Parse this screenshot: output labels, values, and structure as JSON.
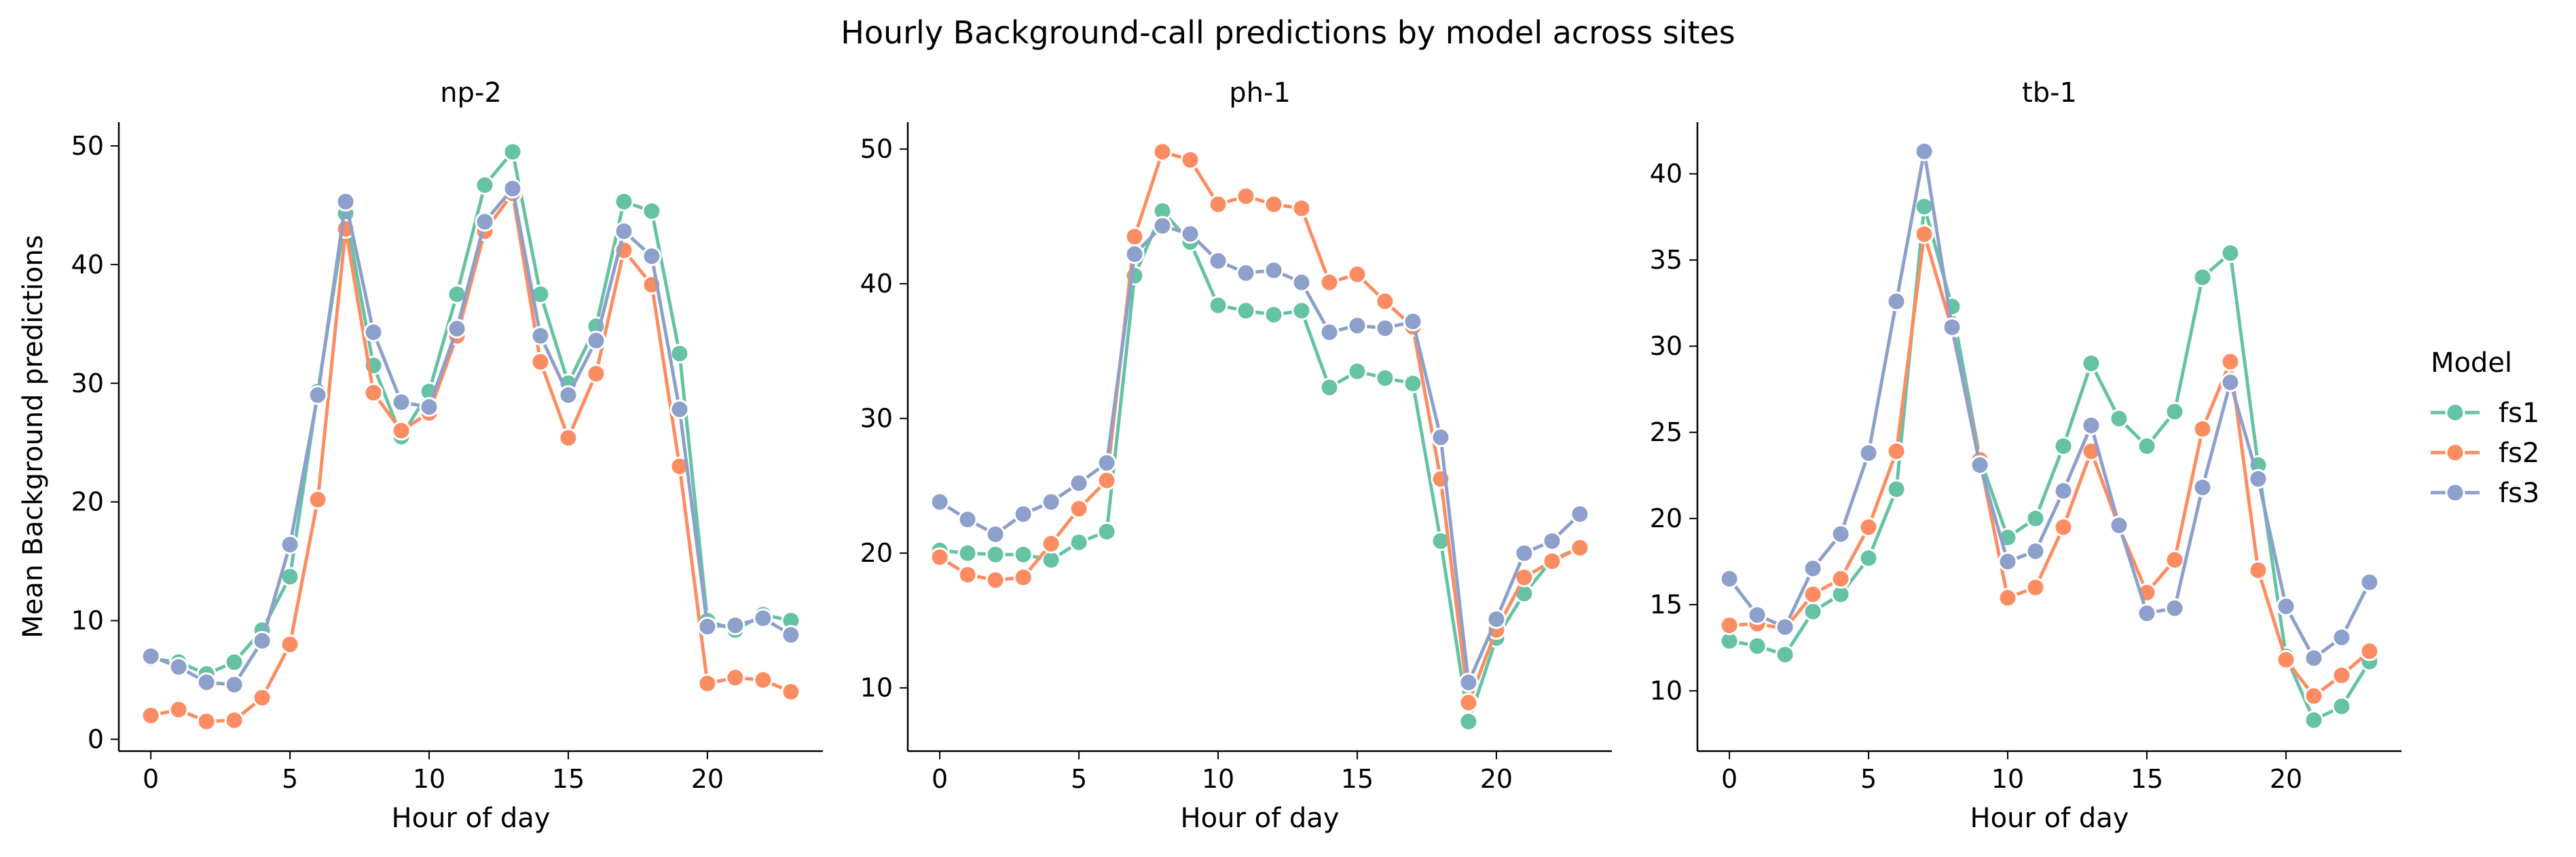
{
  "figure": {
    "title": "Hourly Background-call predictions by model across sites"
  },
  "legend": {
    "title": "Model",
    "placement": "center-right"
  },
  "chart_data": [
    {
      "type": "line",
      "title": "np-2",
      "xlabel": "Hour of day",
      "ylabel": "Mean Background predictions",
      "xlim": [
        -1.15,
        24.15
      ],
      "ylim": [
        -1,
        52
      ],
      "xticks": [
        0,
        5,
        10,
        15,
        20
      ],
      "yticks": [
        0,
        10,
        20,
        30,
        40,
        50
      ],
      "x": [
        0,
        1,
        2,
        3,
        4,
        5,
        6,
        7,
        8,
        9,
        10,
        11,
        12,
        13,
        14,
        15,
        16,
        17,
        18,
        19,
        20,
        21,
        22,
        23
      ],
      "series": [
        {
          "name": "fs1",
          "color": "#66c2a5",
          "values": [
            6.8,
            6.5,
            5.5,
            6.5,
            9.2,
            13.7,
            29.3,
            44.3,
            31.5,
            25.5,
            29.3,
            37.5,
            46.7,
            49.5,
            37.5,
            30.0,
            34.8,
            45.3,
            44.5,
            32.5,
            10.0,
            9.2,
            10.5,
            10.0
          ]
        },
        {
          "name": "fs2",
          "color": "#fc8d62",
          "values": [
            2.0,
            2.5,
            1.5,
            1.6,
            3.5,
            8.0,
            20.2,
            43.0,
            29.2,
            26.0,
            27.5,
            34.0,
            42.8,
            46.0,
            31.8,
            25.4,
            30.8,
            41.2,
            38.3,
            23.0,
            4.7,
            5.2,
            5.0,
            4.0
          ]
        },
        {
          "name": "fs3",
          "color": "#8da0cb",
          "values": [
            7.0,
            6.1,
            4.8,
            4.6,
            8.3,
            16.4,
            29.0,
            45.3,
            34.3,
            28.4,
            28.0,
            34.6,
            43.6,
            46.4,
            34.0,
            29.0,
            33.6,
            42.8,
            40.7,
            27.8,
            9.5,
            9.6,
            10.2,
            8.8
          ]
        }
      ]
    },
    {
      "type": "line",
      "title": "ph-1",
      "xlabel": "Hour of day",
      "ylabel": "",
      "xlim": [
        -1.15,
        24.15
      ],
      "ylim": [
        5.3,
        52
      ],
      "xticks": [
        0,
        5,
        10,
        15,
        20
      ],
      "yticks": [
        10,
        20,
        30,
        40,
        50
      ],
      "x": [
        0,
        1,
        2,
        3,
        4,
        5,
        6,
        7,
        8,
        9,
        10,
        11,
        12,
        13,
        14,
        15,
        16,
        17,
        18,
        19,
        20,
        21,
        22,
        23
      ],
      "series": [
        {
          "name": "fs1",
          "color": "#66c2a5",
          "values": [
            20.2,
            20.0,
            19.9,
            19.9,
            19.5,
            20.8,
            21.6,
            40.6,
            45.4,
            43.1,
            38.4,
            38.0,
            37.7,
            38.0,
            32.3,
            33.5,
            33.0,
            32.6,
            20.9,
            7.5,
            13.7,
            17.0,
            19.5,
            20.4
          ]
        },
        {
          "name": "fs2",
          "color": "#fc8d62",
          "values": [
            19.7,
            18.4,
            18.0,
            18.2,
            20.7,
            23.3,
            25.4,
            43.5,
            49.8,
            49.2,
            45.9,
            46.5,
            45.9,
            45.6,
            40.1,
            40.7,
            38.7,
            36.8,
            25.5,
            8.9,
            14.3,
            18.2,
            19.4,
            20.4
          ]
        },
        {
          "name": "fs3",
          "color": "#8da0cb",
          "values": [
            23.8,
            22.5,
            21.4,
            22.9,
            23.8,
            25.2,
            26.7,
            42.2,
            44.3,
            43.7,
            41.7,
            40.8,
            41.0,
            40.1,
            36.4,
            36.9,
            36.7,
            37.2,
            28.6,
            10.4,
            15.1,
            20.0,
            20.9,
            22.9
          ]
        }
      ]
    },
    {
      "type": "line",
      "title": "tb-1",
      "xlabel": "Hour of day",
      "ylabel": "",
      "xlim": [
        -1.15,
        24.15
      ],
      "ylim": [
        6.5,
        43.0
      ],
      "xticks": [
        0,
        5,
        10,
        15,
        20
      ],
      "yticks": [
        10,
        15,
        20,
        25,
        30,
        35,
        40
      ],
      "x": [
        0,
        1,
        2,
        3,
        4,
        5,
        6,
        7,
        8,
        9,
        10,
        11,
        12,
        13,
        14,
        15,
        16,
        17,
        18,
        19,
        20,
        21,
        22,
        23
      ],
      "series": [
        {
          "name": "fs1",
          "color": "#66c2a5",
          "values": [
            12.9,
            12.6,
            12.1,
            14.6,
            15.6,
            17.7,
            21.7,
            38.1,
            32.3,
            23.5,
            18.9,
            20.0,
            24.2,
            29.0,
            25.8,
            24.2,
            26.2,
            34.0,
            35.4,
            23.1,
            12.0,
            8.3,
            9.1,
            11.7
          ]
        },
        {
          "name": "fs2",
          "color": "#fc8d62",
          "values": [
            13.8,
            13.9,
            13.6,
            15.6,
            16.5,
            19.5,
            23.9,
            36.5,
            31.0,
            23.4,
            15.4,
            16.0,
            19.5,
            23.9,
            19.5,
            15.7,
            17.6,
            25.2,
            29.1,
            17.0,
            11.8,
            9.7,
            10.9,
            12.3
          ]
        },
        {
          "name": "fs3",
          "color": "#8da0cb",
          "values": [
            16.5,
            14.4,
            13.7,
            17.1,
            19.1,
            23.8,
            32.6,
            41.3,
            31.1,
            23.1,
            17.5,
            18.1,
            21.6,
            25.4,
            19.6,
            14.5,
            14.8,
            21.8,
            27.9,
            22.3,
            14.9,
            11.9,
            13.1,
            16.3
          ]
        }
      ]
    }
  ]
}
